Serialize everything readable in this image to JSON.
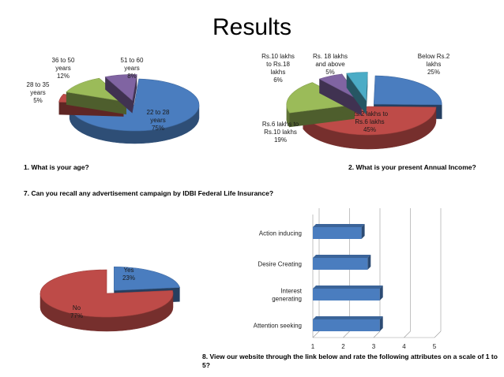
{
  "page": {
    "title": "Results",
    "q1": "1. What is your age?",
    "q2": "2. What is your present Annual Income?",
    "q7": "7. Can you recall any advertisement campaign by IDBI Federal Life Insurance?",
    "q8": "8. View our website through the link below and rate the following attributes on a scale of 1 to 5?"
  },
  "chart_data": [
    {
      "type": "pie",
      "title": "",
      "slices": [
        {
          "label": "22 to 28 years",
          "value": 75,
          "color": "#4a7dbf"
        },
        {
          "label": "28 to 35 years",
          "value": 5,
          "color": "#be4b48"
        },
        {
          "label": "36 to 50 years",
          "value": 12,
          "color": "#9bbb59"
        },
        {
          "label": "51 to 60 years",
          "value": 8,
          "color": "#8064a2"
        }
      ]
    },
    {
      "type": "pie",
      "title": "",
      "slices": [
        {
          "label": "Below Rs.2 lakhs",
          "value": 25,
          "color": "#4a7dbf"
        },
        {
          "label": "Rs.2 lakhs to Rs.6 lakhs",
          "value": 45,
          "color": "#be4b48"
        },
        {
          "label": "Rs.6 lakhs to Rs.10 lakhs",
          "value": 19,
          "color": "#9bbb59"
        },
        {
          "label": "Rs.10 lakhs to Rs.18 lakhs",
          "value": 6,
          "color": "#8064a2"
        },
        {
          "label": "Rs. 18 lakhs and above",
          "value": 5,
          "color": "#4bacc6"
        }
      ]
    },
    {
      "type": "pie",
      "title": "",
      "slices": [
        {
          "label": "Yes",
          "value": 23,
          "color": "#4a7dbf"
        },
        {
          "label": "No",
          "value": 77,
          "color": "#be4b48"
        }
      ]
    },
    {
      "type": "bar",
      "orientation": "horizontal",
      "categories": [
        "Action inducing",
        "Desire Creating",
        "Interest generating",
        "Attention seeking"
      ],
      "values": [
        2.6,
        2.8,
        3.2,
        3.2
      ],
      "xlim": [
        1,
        5
      ],
      "xticks": [
        "1",
        "2",
        "3",
        "4",
        "5"
      ],
      "color": "#4a7dbf",
      "grid": true
    }
  ]
}
